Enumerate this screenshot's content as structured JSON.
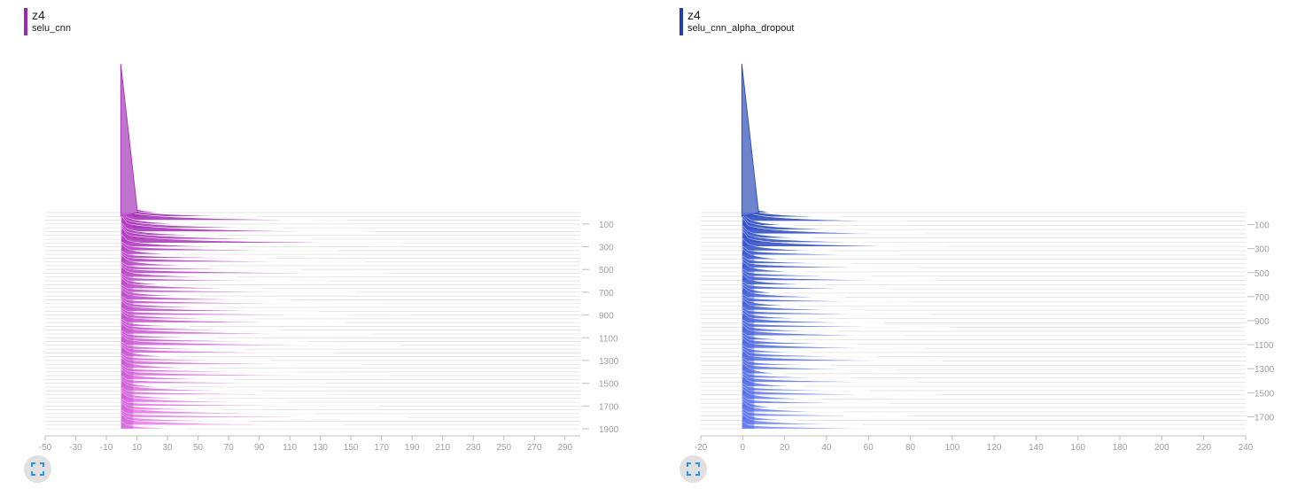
{
  "chart_data": [
    {
      "type": "area",
      "title": "z4",
      "subtitle": "selu_cnn",
      "color": "#9c27b0",
      "x_ticks": [
        -50,
        -30,
        -10,
        10,
        30,
        50,
        70,
        90,
        110,
        130,
        150,
        170,
        190,
        210,
        230,
        250,
        270,
        290
      ],
      "xlim": [
        -50,
        300
      ],
      "step_ticks": [
        100,
        300,
        500,
        700,
        900,
        1100,
        1300,
        1500,
        1700,
        1900
      ],
      "steplim": [
        0,
        1900
      ],
      "series_note_values": {
        "peak_x": 0,
        "tail_max_x": 190
      }
    },
    {
      "type": "area",
      "title": "z4",
      "subtitle": "selu_cnn_alpha_dropout",
      "color": "#1e40b4",
      "x_ticks": [
        -20,
        0,
        20,
        40,
        60,
        80,
        100,
        120,
        140,
        160,
        180,
        200,
        220,
        240
      ],
      "xlim": [
        -20,
        240
      ],
      "step_ticks": [
        100,
        300,
        500,
        700,
        900,
        1100,
        1300,
        1500,
        1700
      ],
      "steplim": [
        0,
        1800
      ],
      "series_note_values": {
        "peak_x": 0,
        "tail_max_x": 100
      }
    }
  ],
  "ui": {
    "expand_icon": "fullscreen-icon"
  }
}
